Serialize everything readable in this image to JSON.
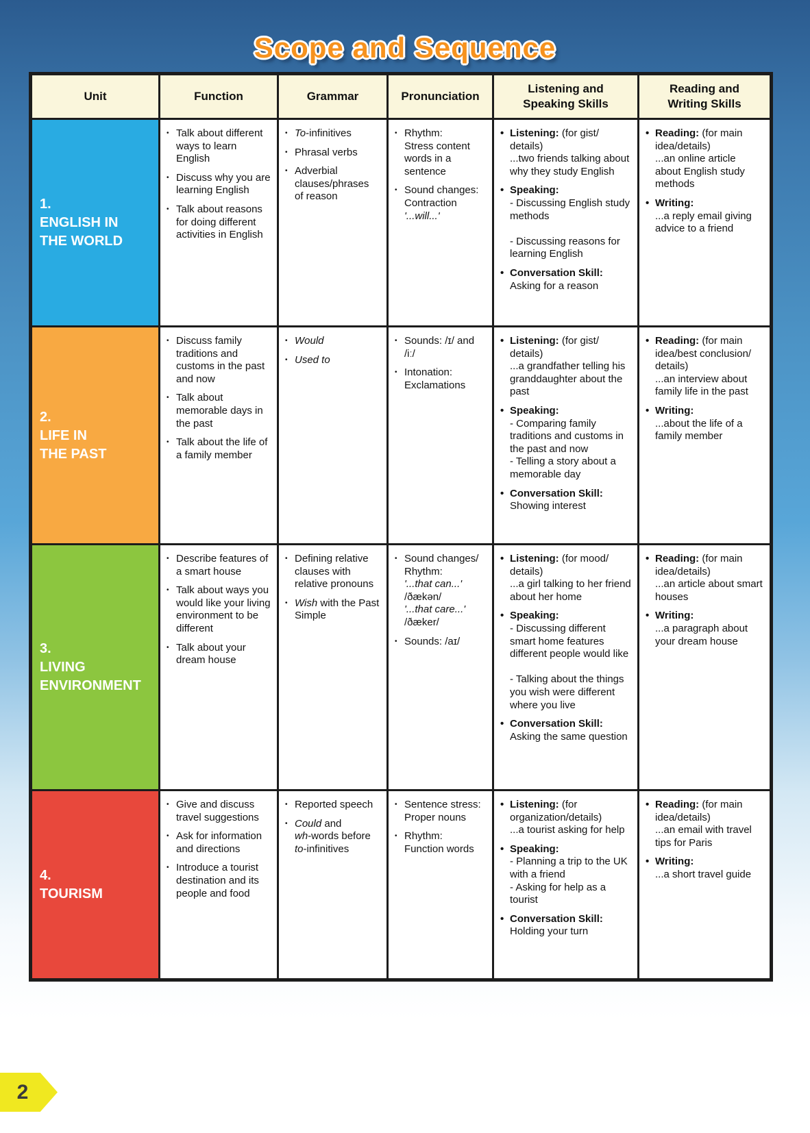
{
  "page": {
    "title": "Scope and Sequence",
    "page_number": "2"
  },
  "colors": {
    "title_orange": "#f6921e",
    "header_bg": "#faf6dc",
    "table_border": "#1c1c1c",
    "unit1_blue": "#29abe2",
    "unit2_orange": "#f8a942",
    "unit3_green": "#8cc63f",
    "unit4_red": "#e8483c",
    "tab_yellow": "#f0e820",
    "background_top_blue": "#2b5b8f",
    "background_bottom": "#ffffff"
  },
  "table": {
    "headers": [
      "Unit",
      "Function",
      "Grammar",
      "Pronunciation",
      "Listening and\nSpeaking Skills",
      "Reading and\nWriting Skills"
    ],
    "rows": [
      {
        "unit": {
          "number": "1.",
          "title": "ENGLISH IN\nTHE WORLD",
          "color": "#29abe2"
        },
        "function": [
          [
            {
              "t": "Talk about different ways to learn English"
            }
          ],
          [
            {
              "t": "Discuss why you are learning English"
            }
          ],
          [
            {
              "t": "Talk about reasons for doing different activities in English"
            }
          ]
        ],
        "grammar": [
          [
            {
              "t": "To",
              "i": true
            },
            {
              "t": "-infinitives"
            }
          ],
          [
            {
              "t": "Phrasal verbs"
            }
          ],
          [
            {
              "t": "Adverbial clauses/phrases of reason"
            }
          ]
        ],
        "pronunciation": [
          [
            {
              "t": "Rhythm:\nStress content words in a sentence"
            }
          ],
          [
            {
              "t": "Sound changes:\nContraction\n"
            },
            {
              "t": "'...will...'",
              "i": true
            }
          ]
        ],
        "listening_speaking": [
          [
            {
              "t": "Listening:",
              "b": true
            },
            {
              "t": " (for gist/\ndetails)\n...two friends talking about why they study English"
            }
          ],
          [
            {
              "t": "Speaking:",
              "b": true
            },
            {
              "t": "\n- Discussing English study methods\n\n- Discussing reasons for learning English"
            }
          ],
          [
            {
              "t": "Conversation Skill:",
              "b": true
            },
            {
              "t": "\nAsking for a reason"
            }
          ]
        ],
        "reading_writing": [
          [
            {
              "t": "Reading:",
              "b": true
            },
            {
              "t": " (for main idea/details)\n...an online article about English study methods"
            }
          ],
          [
            {
              "t": "Writing:",
              "b": true
            },
            {
              "t": "\n...a reply email giving advice to a friend"
            }
          ]
        ]
      },
      {
        "unit": {
          "number": "2.",
          "title": "LIFE IN\nTHE PAST",
          "color": "#f8a942"
        },
        "function": [
          [
            {
              "t": "Discuss family traditions and customs in the past and now"
            }
          ],
          [
            {
              "t": "Talk about memorable days in the past"
            }
          ],
          [
            {
              "t": "Talk about the life of a family member"
            }
          ]
        ],
        "grammar": [
          [
            {
              "t": "Would",
              "i": true
            }
          ],
          [
            {
              "t": "Used to",
              "i": true
            }
          ]
        ],
        "pronunciation": [
          [
            {
              "t": "Sounds: /ɪ/ and /iː/"
            }
          ],
          [
            {
              "t": "Intonation:\nExclamations"
            }
          ]
        ],
        "listening_speaking": [
          [
            {
              "t": "Listening:",
              "b": true
            },
            {
              "t": " (for gist/\ndetails)\n...a grandfather telling his granddaughter about the past"
            }
          ],
          [
            {
              "t": "Speaking:",
              "b": true
            },
            {
              "t": "\n- Comparing family traditions and customs in the past and now\n- Telling a story about a memorable day"
            }
          ],
          [
            {
              "t": "Conversation Skill:",
              "b": true
            },
            {
              "t": "\nShowing interest"
            }
          ]
        ],
        "reading_writing": [
          [
            {
              "t": "Reading:",
              "b": true
            },
            {
              "t": " (for main idea/best conclusion/\ndetails)\n...an interview about family life in the past"
            }
          ],
          [
            {
              "t": "Writing:",
              "b": true
            },
            {
              "t": "\n...about the life of a family member"
            }
          ]
        ]
      },
      {
        "unit": {
          "number": "3.",
          "title": "LIVING\nENVIRONMENT",
          "color": "#8cc63f"
        },
        "function": [
          [
            {
              "t": "Describe features of a smart house"
            }
          ],
          [
            {
              "t": "Talk about ways you would like your living environment to be different"
            }
          ],
          [
            {
              "t": "Talk about your dream house"
            }
          ]
        ],
        "grammar": [
          [
            {
              "t": "Defining relative clauses with relative pronouns"
            }
          ],
          [
            {
              "t": "Wish",
              "i": true
            },
            {
              "t": " with the Past Simple"
            }
          ]
        ],
        "pronunciation": [
          [
            {
              "t": "Sound changes/\nRhythm:\n"
            },
            {
              "t": "'...that can...'",
              "i": true
            },
            {
              "t": "\n/ðækən/\n"
            },
            {
              "t": "'...that care...'",
              "i": true
            },
            {
              "t": "\n/ðæker/"
            }
          ],
          [
            {
              "t": "Sounds: /aɪ/"
            }
          ]
        ],
        "listening_speaking": [
          [
            {
              "t": "Listening:",
              "b": true
            },
            {
              "t": " (for mood/\ndetails)\n...a girl talking to her friend about her home"
            }
          ],
          [
            {
              "t": "Speaking:",
              "b": true
            },
            {
              "t": "\n- Discussing different smart home features different people would like\n\n- Talking about the things you wish were different where you live"
            }
          ],
          [
            {
              "t": "Conversation Skill:",
              "b": true
            },
            {
              "t": "\nAsking the same question"
            }
          ]
        ],
        "reading_writing": [
          [
            {
              "t": "Reading:",
              "b": true
            },
            {
              "t": " (for main idea/details)\n...an article about smart houses"
            }
          ],
          [
            {
              "t": "Writing:",
              "b": true
            },
            {
              "t": "\n...a paragraph about your dream house"
            }
          ]
        ]
      },
      {
        "unit": {
          "number": "4.",
          "title": "TOURISM",
          "color": "#e8483c"
        },
        "function": [
          [
            {
              "t": "Give and discuss travel suggestions"
            }
          ],
          [
            {
              "t": "Ask for information and directions"
            }
          ],
          [
            {
              "t": "Introduce a tourist destination and its people and food"
            }
          ]
        ],
        "grammar": [
          [
            {
              "t": "Reported speech"
            }
          ],
          [
            {
              "t": "Could",
              "i": true
            },
            {
              "t": " and\n"
            },
            {
              "t": "wh",
              "i": true
            },
            {
              "t": "-words before\n"
            },
            {
              "t": "to",
              "i": true
            },
            {
              "t": "-infinitives"
            }
          ]
        ],
        "pronunciation": [
          [
            {
              "t": "Sentence stress: Proper nouns"
            }
          ],
          [
            {
              "t": "Rhythm:\nFunction words"
            }
          ]
        ],
        "listening_speaking": [
          [
            {
              "t": "Listening:",
              "b": true
            },
            {
              "t": " (for\norganization/details)\n...a tourist asking for help"
            }
          ],
          [
            {
              "t": "Speaking:",
              "b": true
            },
            {
              "t": "\n- Planning a trip to the UK with a friend\n- Asking for help as a tourist"
            }
          ],
          [
            {
              "t": "Conversation Skill:",
              "b": true
            },
            {
              "t": "\nHolding your turn"
            }
          ]
        ],
        "reading_writing": [
          [
            {
              "t": "Reading:",
              "b": true
            },
            {
              "t": " (for main idea/details)\n...an email with travel tips for Paris"
            }
          ],
          [
            {
              "t": "Writing:",
              "b": true
            },
            {
              "t": "\n...a short travel guide"
            }
          ]
        ]
      }
    ]
  }
}
